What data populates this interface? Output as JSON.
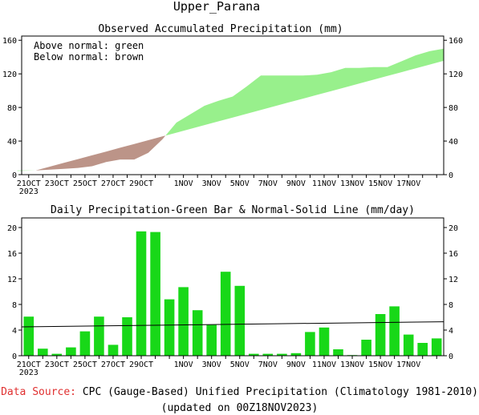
{
  "title": "Upper_Parana",
  "footer": {
    "source_label": "Data Source:",
    "source_text": "CPC (Gauge-Based) Unified Precipitation (Climatology 1981-2010)",
    "updated": "(updated on 00Z18NOV2023)"
  },
  "colors": {
    "above": "#98f08c",
    "below": "#bc9488",
    "bar": "#18d818",
    "source_label": "#e03030"
  },
  "chart_data": [
    {
      "type": "area",
      "title": "Observed Accumulated Precipitation (mm)",
      "legend": [
        "Above normal: green",
        "Below normal: brown"
      ],
      "legend_position": "top-left",
      "x_tick_labels": [
        "21OCT",
        "23OCT",
        "25OCT",
        "27OCT",
        "29OCT",
        "1NOV",
        "3NOV",
        "5NOV",
        "7NOV",
        "9NOV",
        "11NOV",
        "13NOV",
        "15NOV",
        "17NOV"
      ],
      "x_tick_index": [
        0,
        2,
        4,
        6,
        8,
        11,
        13,
        15,
        17,
        19,
        21,
        23,
        25,
        27
      ],
      "year_label": "2023",
      "ylim": [
        0,
        165
      ],
      "yticks": [
        0,
        40,
        80,
        120,
        160
      ],
      "x_start": -0.3,
      "x_end": 28,
      "observed": [
        5,
        6,
        7,
        8,
        10,
        15,
        18,
        18,
        26,
        42,
        62,
        72,
        82,
        88,
        93,
        105,
        118,
        118,
        118,
        118,
        119,
        122,
        127,
        127,
        128,
        128,
        135,
        142,
        147,
        150
      ],
      "normal": [
        4.5,
        5,
        9.5,
        14,
        18.5,
        23,
        27.5,
        32,
        36.5,
        41,
        45.5,
        50,
        54.5,
        59,
        63.5,
        68,
        72.5,
        77,
        81.5,
        86,
        90.5,
        95,
        99.5,
        104,
        108.5,
        113,
        117.5,
        122,
        126.5,
        131,
        135.5,
        140,
        144.5,
        149,
        151
      ]
    },
    {
      "type": "bar",
      "title": "Daily Precipitation-Green Bar & Normal-Solid Line (mm/day)",
      "x_tick_labels": [
        "21OCT",
        "23OCT",
        "25OCT",
        "27OCT",
        "29OCT",
        "1NOV",
        "3NOV",
        "5NOV",
        "7NOV",
        "9NOV",
        "11NOV",
        "13NOV",
        "15NOV",
        "17NOV"
      ],
      "x_tick_index": [
        0,
        2,
        4,
        6,
        8,
        11,
        13,
        15,
        17,
        19,
        21,
        23,
        25,
        27
      ],
      "year_label": "2023",
      "ylim": [
        0,
        21.5
      ],
      "yticks": [
        0,
        4,
        8,
        12,
        16,
        20
      ],
      "values": [
        6.1,
        1.1,
        0.3,
        1.3,
        3.8,
        6.1,
        1.7,
        6.0,
        19.4,
        19.3,
        8.8,
        10.7,
        7.1,
        4.8,
        13.1,
        10.9,
        0.3,
        0.3,
        0.3,
        0.4,
        3.7,
        4.4,
        1.0,
        0.1,
        2.5,
        6.5,
        7.7,
        3.3,
        2.0,
        2.7
      ],
      "normal": [
        4.5,
        5.3
      ]
    }
  ]
}
